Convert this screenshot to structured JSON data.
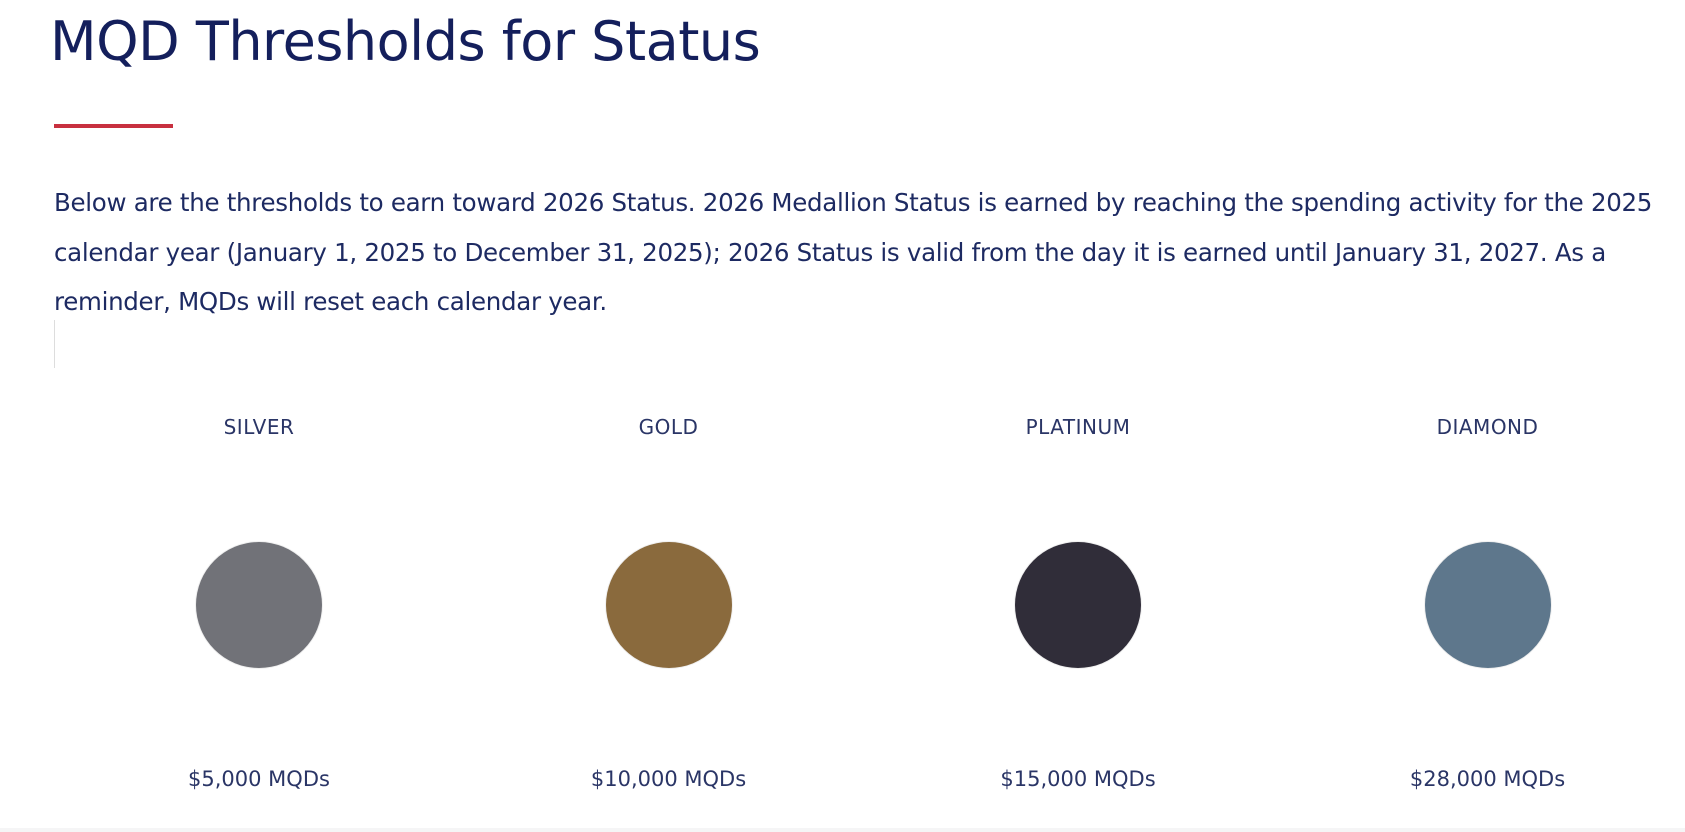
{
  "header": {
    "title": "MQD Thresholds for Status"
  },
  "intro": "Below are the thresholds to earn toward 2026 Status. 2026 Medallion Status is earned by reaching the spending activity for the 2025 calendar year (January 1, 2025 to December 31, 2025); 2026 Status is valid from the day it is earned until January 31, 2027. As a reminder, MQDs will reset each calendar year.",
  "tiers": [
    {
      "name": "SILVER",
      "color": "#717278",
      "threshold": "$5,000 MQDs"
    },
    {
      "name": "GOLD",
      "color": "#8a6a3d",
      "threshold": "$10,000 MQDs"
    },
    {
      "name": "PLATINUM",
      "color": "#302d39",
      "threshold": "$15,000 MQDs"
    },
    {
      "name": "DIAMOND",
      "color": "#5e778c",
      "threshold": "$28,000 MQDs"
    }
  ]
}
